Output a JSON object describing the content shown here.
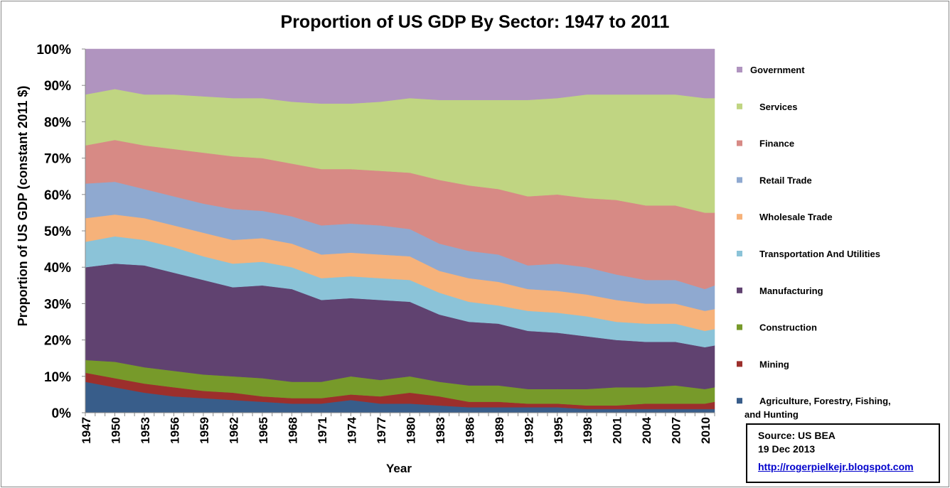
{
  "chart_data": {
    "type": "area",
    "stacked": true,
    "normalized": true,
    "title": "Proportion of US GDP By Sector: 1947 to 2011",
    "xlabel": "Year",
    "ylabel": "Proportion of US GDP (constant 2011 $)",
    "ylim": [
      0,
      100
    ],
    "yticks": [
      "0%",
      "10%",
      "20%",
      "30%",
      "40%",
      "50%",
      "60%",
      "70%",
      "80%",
      "90%",
      "100%"
    ],
    "xlim": [
      1947,
      2011
    ],
    "xticks": [
      "1947",
      "1950",
      "1953",
      "1956",
      "1959",
      "1962",
      "1965",
      "1968",
      "1971",
      "1974",
      "1977",
      "1980",
      "1983",
      "1986",
      "1989",
      "1992",
      "1995",
      "1998",
      "2001",
      "2004",
      "2007",
      "2010"
    ],
    "grid": false,
    "legend_position": "right",
    "x": [
      1947,
      1950,
      1953,
      1956,
      1959,
      1962,
      1965,
      1968,
      1971,
      1974,
      1977,
      1980,
      1983,
      1986,
      1989,
      1992,
      1995,
      1998,
      2001,
      2004,
      2007,
      2010,
      2011
    ],
    "series": [
      {
        "name": "Agriculture, Forestry, Fishing, and Hunting",
        "label_lines": [
          "Agriculture, Forestry, Fishing,",
          "and Hunting"
        ],
        "color": "#385d8a",
        "values": [
          8.5,
          7,
          5.5,
          4.5,
          4,
          3.5,
          3,
          2.5,
          2.5,
          3.5,
          2.5,
          2.5,
          2,
          1.5,
          1.5,
          1.5,
          1.5,
          1,
          1,
          1,
          1,
          1,
          1
        ]
      },
      {
        "name": "Mining",
        "label_lines": [
          "Mining"
        ],
        "color": "#9c2f2c",
        "values": [
          2.5,
          2.5,
          2.5,
          2.5,
          2,
          2,
          1.5,
          1.5,
          1.5,
          1.5,
          2,
          3,
          2.5,
          1.5,
          1.5,
          1,
          1,
          1,
          1,
          1.5,
          1.5,
          1.5,
          2
        ]
      },
      {
        "name": "Construction",
        "label_lines": [
          "Construction"
        ],
        "color": "#779a2a",
        "values": [
          3.5,
          4.5,
          4.5,
          4.5,
          4.5,
          4.5,
          5,
          4.5,
          4.5,
          5,
          4.5,
          4.5,
          4,
          4.5,
          4.5,
          4,
          4,
          4.5,
          5,
          4.5,
          5,
          4,
          4
        ]
      },
      {
        "name": "Manufacturing",
        "label_lines": [
          "Manufacturing"
        ],
        "color": "#604270",
        "values": [
          25.5,
          27,
          28,
          27,
          26,
          24.5,
          25.5,
          25.5,
          22.5,
          21.5,
          22,
          20.5,
          18.5,
          17.5,
          17,
          16,
          15.5,
          14.5,
          13,
          12.5,
          12,
          11.5,
          11.5
        ]
      },
      {
        "name": "Transportation And Utilities",
        "label_lines": [
          "Transportation And Utilities"
        ],
        "color": "#8bc3d8",
        "values": [
          7,
          7.5,
          7,
          7,
          6.5,
          6.5,
          6.5,
          6,
          6,
          6,
          6,
          6,
          6,
          5.5,
          5,
          5.5,
          5.5,
          5.5,
          5,
          5,
          5,
          4.5,
          4.5
        ]
      },
      {
        "name": "Wholesale Trade",
        "label_lines": [
          "Wholesale Trade"
        ],
        "color": "#f6b27a",
        "values": [
          6.5,
          6,
          6,
          6,
          6.5,
          6.5,
          6.5,
          6.5,
          6.5,
          6.5,
          6.5,
          6.5,
          6,
          6.5,
          6.5,
          6,
          6,
          6,
          6,
          5.5,
          5.5,
          5.5,
          5.5
        ]
      },
      {
        "name": "Retail Trade",
        "label_lines": [
          "Retail Trade"
        ],
        "color": "#8fa9d0",
        "values": [
          9.5,
          9,
          8,
          8,
          8,
          8.5,
          7.5,
          7.5,
          8,
          8,
          8,
          7.5,
          7.5,
          7.5,
          7.5,
          6.5,
          7.5,
          7.5,
          7,
          6.5,
          6.5,
          6,
          6.5
        ]
      },
      {
        "name": "Finance",
        "label_lines": [
          "Finance"
        ],
        "color": "#d78a85",
        "values": [
          10.5,
          11.5,
          12,
          13,
          14,
          14.5,
          14.5,
          14.5,
          15.5,
          15,
          15,
          15.5,
          17.5,
          18,
          18,
          19,
          19,
          19,
          20.5,
          20.5,
          20.5,
          21,
          20
        ]
      },
      {
        "name": "Services",
        "label_lines": [
          "Services"
        ],
        "color": "#c0d582",
        "values": [
          14,
          14,
          14,
          15,
          15.5,
          16,
          16.5,
          17,
          18,
          18,
          19,
          20.5,
          22,
          23.5,
          24.5,
          26.5,
          26.5,
          28.5,
          29,
          30.5,
          30.5,
          31.5,
          31.5
        ]
      },
      {
        "name": "Government",
        "label_lines": [
          "Government"
        ],
        "color": "#b094bf",
        "values": [
          12.5,
          11,
          12.5,
          12.5,
          13,
          13.5,
          13.5,
          14.5,
          15,
          15,
          14.5,
          13.5,
          14,
          14,
          14,
          14,
          13.5,
          12.5,
          12.5,
          12.5,
          12.5,
          13.5,
          13.5
        ]
      }
    ]
  },
  "source": {
    "line1": "Source: US BEA",
    "line2": "19 Dec 2013",
    "link": "http://rogerpielkejr.blogspot.com"
  }
}
